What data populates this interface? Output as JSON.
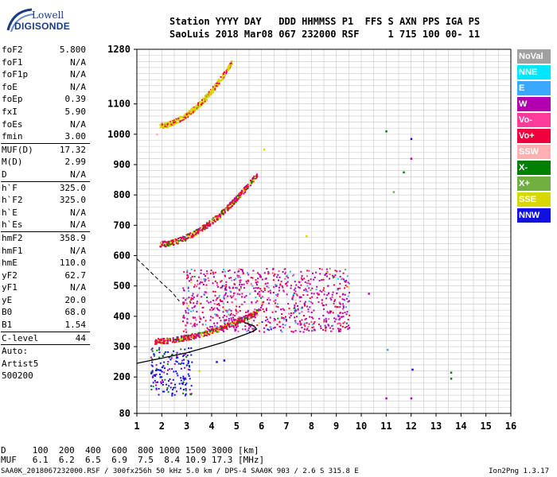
{
  "logo": {
    "brand": "Lowell",
    "product": "DIGISONDE"
  },
  "header": {
    "line1": "Station YYYY DAY   DDD HHMMSS P1  FFS S AXN PPS IGA PS",
    "line2": "SaoLuis 2018 Mar08 067 232000 RSF     1 715 100 00- 11"
  },
  "params": {
    "foF2": "5.800",
    "foF1": "N/A",
    "foF1p": "N/A",
    "foE": "N/A",
    "foEp": "0.39",
    "fxI": "5.90",
    "foEs": "N/A",
    "fmin": "3.00",
    "MUFD": "17.32",
    "MD": "2.99",
    "D": "N/A",
    "hF": "325.0",
    "hF2": "325.0",
    "hE": "N/A",
    "hEs": "N/A",
    "hmF2": "358.9",
    "hmF1": "N/A",
    "hmE": "110.0",
    "yF2": "62.7",
    "yF1": "N/A",
    "yE": "20.0",
    "B0": "68.0",
    "B1": "1.54",
    "Clevel": "44",
    "auto": "Auto:",
    "artist": "Artist5",
    "artist_ver": "500200"
  },
  "param_labels": {
    "foF2": "foF2",
    "foF1": "foF1",
    "foF1p": "foF1p",
    "foE": "foE",
    "foEp": "foEp",
    "fxI": "fxI",
    "foEs": "foEs",
    "fmin": "fmin",
    "MUFD": "MUF(D)",
    "MD": "M(D)",
    "D": "D",
    "hF": "h`F",
    "hF2": "h`F2",
    "hE": "h`E",
    "hEs": "h`Es",
    "hmF2": "hmF2",
    "hmF1": "hmF1",
    "hmE": "hmE",
    "yF2": "yF2",
    "yF1": "yF1",
    "yE": "yE",
    "B0": "B0",
    "B1": "B1",
    "Clevel": "C-level"
  },
  "legend": [
    {
      "label": "NoVal",
      "color": "#a0a0a0"
    },
    {
      "label": "NNE",
      "color": "#00e6ff"
    },
    {
      "label": "E",
      "color": "#3aa8ff"
    },
    {
      "label": "W",
      "color": "#b000b0"
    },
    {
      "label": "Vo-",
      "color": "#ff3c9c"
    },
    {
      "label": "Vo+",
      "color": "#f0003c"
    },
    {
      "label": "SSW",
      "color": "#ffb0b0"
    },
    {
      "label": "X-",
      "color": "#008000"
    },
    {
      "label": "X+",
      "color": "#70b040"
    },
    {
      "label": "SSE",
      "color": "#d8d800"
    },
    {
      "label": "NNW",
      "color": "#1010e0"
    }
  ],
  "bottom": {
    "line1": "D     100  200  400  600  800 1000 1500 3000 [km]",
    "line2": "MUF   6.1  6.2  6.5  6.9  7.5  8.4 10.9 17.3 [MHz]"
  },
  "footer": {
    "file": "SAA0K_2018067232000.RSF / 300fx256h 50 kHz 5.0 km / DPS-4 SAA0K 903 / 2.6 S 315.8 E",
    "version": "Ion2Png 1.3.17"
  },
  "chart_data": {
    "type": "scatter",
    "xlim": [
      1,
      16
    ],
    "ylim": [
      80,
      1280
    ],
    "xticks": [
      1,
      2,
      3,
      4,
      5,
      6,
      7,
      8,
      9,
      10,
      11,
      12,
      13,
      14,
      15,
      16
    ],
    "yticks": [
      80,
      200,
      300,
      400,
      500,
      600,
      700,
      800,
      900,
      1000,
      1100,
      1280
    ],
    "grid": true,
    "legend_position": "right",
    "profile_curve": {
      "x": [
        1.0,
        2.0,
        3.0,
        3.8,
        4.5,
        5.0,
        5.4,
        5.7,
        5.8,
        5.7,
        5.3
      ],
      "y": [
        245,
        262,
        280,
        298,
        315,
        330,
        342,
        352,
        358,
        368,
        380
      ]
    },
    "dashed_curve": {
      "x": [
        1.0,
        1.5,
        2.0,
        2.4,
        2.7
      ],
      "y": [
        590,
        550,
        510,
        480,
        450
      ]
    },
    "traces": [
      {
        "name": "F2 first-order trace",
        "x_range": [
          1.7,
          5.9
        ],
        "y_start": 320,
        "y_end": 420,
        "color": "#f0003c"
      },
      {
        "name": "F2 second-order trace",
        "x_range": [
          1.9,
          5.8
        ],
        "y_start": 640,
        "y_end": 870,
        "color": "#f0003c"
      },
      {
        "name": "F2 third-order trace",
        "x_range": [
          1.9,
          4.8
        ],
        "y_start": 1030,
        "y_end": 1240,
        "color": "#d8d800"
      },
      {
        "name": "spread F cluster",
        "x_range": [
          2.8,
          9.5
        ],
        "y_start": 350,
        "y_end": 560,
        "color": "#b000b0"
      },
      {
        "name": "low echoes",
        "x_range": [
          1.5,
          3.2
        ],
        "y_start": 140,
        "y_end": 300,
        "color": "#1010e0"
      }
    ],
    "sparse_points": [
      {
        "x": 11.0,
        "y": 1010,
        "c": "#008000"
      },
      {
        "x": 11.05,
        "y": 290,
        "c": "#3aa8ff"
      },
      {
        "x": 11.0,
        "y": 130,
        "c": "#b000b0"
      },
      {
        "x": 11.3,
        "y": 810,
        "c": "#70b040"
      },
      {
        "x": 11.7,
        "y": 875,
        "c": "#008000"
      },
      {
        "x": 12.0,
        "y": 985,
        "c": "#1010e0"
      },
      {
        "x": 12.0,
        "y": 920,
        "c": "#b000b0"
      },
      {
        "x": 12.05,
        "y": 225,
        "c": "#1010e0"
      },
      {
        "x": 12.0,
        "y": 130,
        "c": "#b000b0"
      },
      {
        "x": 10.3,
        "y": 475,
        "c": "#b000b0"
      },
      {
        "x": 13.6,
        "y": 215,
        "c": "#008000"
      },
      {
        "x": 13.6,
        "y": 195,
        "c": "#008000"
      },
      {
        "x": 7.8,
        "y": 665,
        "c": "#d8d800"
      },
      {
        "x": 6.1,
        "y": 950,
        "c": "#d8d800"
      },
      {
        "x": 3.5,
        "y": 220,
        "c": "#d8d800"
      },
      {
        "x": 1.8,
        "y": 1000,
        "c": "#ffb0b0"
      },
      {
        "x": 4.2,
        "y": 250,
        "c": "#1010e0"
      },
      {
        "x": 4.5,
        "y": 255,
        "c": "#1010e0"
      }
    ]
  }
}
